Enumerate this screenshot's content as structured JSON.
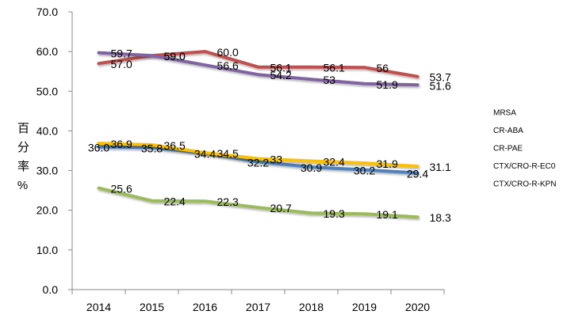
{
  "chart_data": {
    "type": "line",
    "ylabel": "百分率%",
    "ylim": [
      0,
      70
    ],
    "yticks": [
      "0.0",
      "10.0",
      "20.0",
      "30.0",
      "40.0",
      "50.0",
      "60.0",
      "70.0"
    ],
    "categories": [
      "2014",
      "2015",
      "2016",
      "2017",
      "2018",
      "2019",
      "2020"
    ],
    "grid": false,
    "legend": "right",
    "series": [
      {
        "name": "MRSA",
        "color": "#4f81bd",
        "values": [
          36.0,
          35.8,
          34.4,
          32.2,
          30.9,
          30.2,
          29.4
        ],
        "labels": [
          "36.0",
          "35.8",
          "34.4",
          "32.2",
          "30.9",
          "30.2",
          "29.4"
        ]
      },
      {
        "name": "CR-ABA",
        "color": "#c0504d",
        "values": [
          57.0,
          59.0,
          60.0,
          56.1,
          56.1,
          56,
          53.7
        ],
        "labels": [
          "57.0",
          "59.0",
          "60.0",
          "56.1",
          "56.1",
          "56",
          "53.7"
        ]
      },
      {
        "name": "CR-PAE",
        "color": "#9bbb59",
        "values": [
          25.6,
          22.4,
          22.3,
          20.7,
          19.3,
          19.1,
          18.3
        ],
        "labels": [
          "25.6",
          "22.4",
          "22.3",
          "20.7",
          "19.3",
          "19.1",
          "18.3"
        ]
      },
      {
        "name": "CTX/CRO-R-EC0",
        "color": "#8064a2",
        "values": [
          59.7,
          59.0,
          56.6,
          54.2,
          53,
          51.9,
          51.6
        ],
        "labels": [
          "59.7",
          "59.0",
          "56.6",
          "54.2",
          "53",
          "51.9",
          "51.6"
        ]
      },
      {
        "name": "CTX/CRO-R-KPN",
        "color": "#ffc000",
        "values": [
          36.9,
          36.5,
          34.5,
          33,
          32.4,
          31.9,
          31.1
        ],
        "labels": [
          "36.9",
          "36.5",
          "34.5",
          "33",
          "32.4",
          "31.9",
          "31.1"
        ]
      }
    ]
  }
}
